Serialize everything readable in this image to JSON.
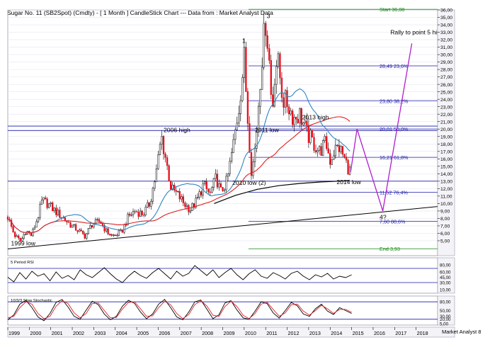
{
  "title": "Sugar No. 11 (SB2Spot) (Cmdty) -  [ 1 Month ] CandleStick Chart --- Data from : Market Analyst Data",
  "watermark": "Market Analyst 8",
  "colors": {
    "up": "#ffffff",
    "down": "#e8101e",
    "wick": "#000000",
    "sma_blue": "#2e86c1",
    "sma_red": "#e02020",
    "trend_black": "#000000",
    "fib_blue": "#1a1aa8",
    "fib_green": "#118811",
    "projection": "#b01ecc",
    "grid": "#e6e6f2",
    "guide": "#1a1aa8"
  },
  "chart_data": [
    {
      "type": "candlestick",
      "title": "Sugar No. 11 (SB2Spot) (Cmdty) -  [ 1 Month ] CandleStick Chart --- Data from : Market Analyst Data",
      "xlim": [
        1999,
        2019
      ],
      "ylim": [
        3,
        36
      ],
      "x_ticks": [
        "1999",
        "2000",
        "2001",
        "2002",
        "2003",
        "2004",
        "2005",
        "2006",
        "2007",
        "2008",
        "2009",
        "2010",
        "2011",
        "2012",
        "2013",
        "2014",
        "2015",
        "2016",
        "2017",
        "2018"
      ],
      "y_ticks": [
        "5,00",
        "6,00",
        "7,00",
        "8,00",
        "9,00",
        "10,00",
        "11,00",
        "12,00",
        "13,00",
        "14,00",
        "15,00",
        "16,00",
        "17,00",
        "18,00",
        "19,00",
        "20,00",
        "21,00",
        "22,00",
        "23,00",
        "24,00",
        "25,00",
        "26,00",
        "27,00",
        "28,00",
        "29,00",
        "30,00",
        "31,00",
        "32,00",
        "33,00",
        "34,00",
        "35,00",
        "36,00"
      ],
      "price_path": [
        [
          1999.0,
          8.2
        ],
        [
          1999.3,
          5.8
        ],
        [
          1999.6,
          4.9
        ],
        [
          1999.85,
          6.4
        ],
        [
          2000.1,
          5.7
        ],
        [
          2000.4,
          8.2
        ],
        [
          2000.6,
          10.4
        ],
        [
          2000.85,
          10.0
        ],
        [
          2001.2,
          9.0
        ],
        [
          2001.6,
          8.0
        ],
        [
          2001.9,
          7.2
        ],
        [
          2002.3,
          6.3
        ],
        [
          2002.6,
          5.6
        ],
        [
          2002.9,
          7.2
        ],
        [
          2003.3,
          7.6
        ],
        [
          2003.6,
          6.2
        ],
        [
          2003.9,
          5.6
        ],
        [
          2004.3,
          6.2
        ],
        [
          2004.6,
          8.2
        ],
        [
          2004.9,
          9.0
        ],
        [
          2005.3,
          8.6
        ],
        [
          2005.6,
          10.0
        ],
        [
          2005.9,
          14.0
        ],
        [
          2006.15,
          19.0
        ],
        [
          2006.35,
          16.0
        ],
        [
          2006.6,
          12.0
        ],
        [
          2006.9,
          11.2
        ],
        [
          2007.2,
          10.0
        ],
        [
          2007.5,
          9.2
        ],
        [
          2007.8,
          10.4
        ],
        [
          2008.1,
          12.5
        ],
        [
          2008.4,
          11.2
        ],
        [
          2008.7,
          13.5
        ],
        [
          2008.9,
          11.5
        ],
        [
          2009.2,
          13.0
        ],
        [
          2009.5,
          18.0
        ],
        [
          2009.75,
          23.0
        ],
        [
          2010.0,
          29.5
        ],
        [
          2010.15,
          22.0
        ],
        [
          2010.35,
          14.0
        ],
        [
          2010.55,
          18.5
        ],
        [
          2010.7,
          25.0
        ],
        [
          2010.85,
          30.5
        ],
        [
          2011.0,
          34.5
        ],
        [
          2011.15,
          30.0
        ],
        [
          2011.3,
          22.0
        ],
        [
          2011.45,
          29.0
        ],
        [
          2011.6,
          28.5
        ],
        [
          2011.8,
          24.0
        ],
        [
          2012.0,
          23.5
        ],
        [
          2012.3,
          21.5
        ],
        [
          2012.6,
          22.0
        ],
        [
          2012.9,
          19.5
        ],
        [
          2013.2,
          18.2
        ],
        [
          2013.5,
          17.0
        ],
        [
          2013.8,
          18.2
        ],
        [
          2014.0,
          15.8
        ],
        [
          2014.2,
          17.2
        ],
        [
          2014.4,
          17.6
        ],
        [
          2014.6,
          16.5
        ],
        [
          2014.8,
          15.0
        ],
        [
          2014.95,
          14.2
        ]
      ],
      "projection_path": [
        [
          2014.95,
          14.2
        ],
        [
          2015.25,
          20.0
        ],
        [
          2016.45,
          9.0
        ],
        [
          2017.8,
          31.5
        ]
      ],
      "horizontal_guides": [
        20.4,
        19.8,
        13.0
      ],
      "fib_levels": [
        {
          "value": 36.08,
          "label": "Start 36,08",
          "color": "green"
        },
        {
          "value": 28.49,
          "label": "28,49 23,6%",
          "color": "blue"
        },
        {
          "value": 23.8,
          "label": "23,80 38,2%",
          "color": "blue"
        },
        {
          "value": 20.01,
          "label": "20,01 50,0%",
          "color": "blue"
        },
        {
          "value": 16.21,
          "label": "16,21 61,8%",
          "color": "blue"
        },
        {
          "value": 11.52,
          "label": "11,52 76,4%",
          "color": "blue"
        },
        {
          "value": 7.6,
          "label": "7,60 88,6%",
          "color": "blue"
        },
        {
          "value": 3.93,
          "label": "End 3,93",
          "color": "green"
        }
      ],
      "annotations": [
        {
          "text": "1999 low",
          "x": 1999.15,
          "y": 4.4
        },
        {
          "text": "2006 high",
          "x": 2006.25,
          "y": 19.6
        },
        {
          "text": "1",
          "x": 2009.9,
          "y": 31.6
        },
        {
          "text": "3",
          "x": 2011.05,
          "y": 34.9
        },
        {
          "text": "2011 low",
          "x": 2010.5,
          "y": 19.6
        },
        {
          "text": "2013 high",
          "x": 2012.7,
          "y": 21.3
        },
        {
          "text": "2010 low (2)",
          "x": 2009.45,
          "y": 12.5
        },
        {
          "text": "2014 low",
          "x": 2014.3,
          "y": 12.6
        },
        {
          "text": "4?",
          "x": 2016.3,
          "y": 7.9
        },
        {
          "text": "Rally to point 5 high",
          "x": 2016.8,
          "y": 32.7
        }
      ]
    },
    {
      "type": "line",
      "title": "5 Period RSI",
      "ylim": [
        0,
        100
      ],
      "y_ticks": [
        "10,00",
        "30,00",
        "45,00",
        "60,00",
        "80,00"
      ],
      "series": [
        {
          "values": [
            45,
            32,
            58,
            40,
            62,
            48,
            55,
            35,
            60,
            42,
            50,
            38,
            66,
            52,
            44,
            58,
            72,
            55,
            40,
            30,
            48,
            62,
            50,
            42,
            58,
            70,
            55,
            40,
            62,
            48,
            56,
            78,
            64,
            50,
            66,
            44,
            58,
            70,
            52,
            38,
            55,
            66,
            48,
            42,
            58,
            50,
            40,
            56,
            62,
            48,
            38,
            52,
            46,
            56,
            40,
            48,
            44,
            52
          ]
        }
      ],
      "guides": [
        30,
        70
      ]
    },
    {
      "type": "line",
      "title": "10/3/3 Slow Stochastic",
      "ylim": [
        0,
        100
      ],
      "y_ticks": [
        "5,00",
        "20,00",
        "30,00",
        "50,00",
        "80,00"
      ],
      "series": [
        {
          "values": [
            18,
            35,
            72,
            85,
            60,
            28,
            15,
            40,
            78,
            88,
            62,
            30,
            20,
            52,
            82,
            70,
            38,
            18,
            30,
            65,
            85,
            75,
            45,
            22,
            38,
            72,
            88,
            60,
            28,
            18,
            45,
            80,
            86,
            55,
            22,
            35,
            76,
            84,
            52,
            25,
            20,
            48,
            80,
            74,
            42,
            24,
            50,
            78,
            66,
            38,
            30,
            56,
            72,
            48,
            36,
            60,
            50,
            40
          ]
        },
        {
          "values": [
            25,
            30,
            60,
            80,
            72,
            40,
            22,
            30,
            65,
            84,
            74,
            42,
            25,
            40,
            74,
            76,
            50,
            25,
            26,
            55,
            78,
            80,
            56,
            30,
            32,
            60,
            82,
            70,
            40,
            22,
            36,
            70,
            84,
            66,
            34,
            30,
            64,
            82,
            64,
            34,
            22,
            40,
            72,
            78,
            54,
            30,
            42,
            70,
            72,
            48,
            34,
            50,
            68,
            56,
            40,
            54,
            54,
            44
          ]
        }
      ],
      "guides": [
        20,
        80
      ]
    }
  ]
}
